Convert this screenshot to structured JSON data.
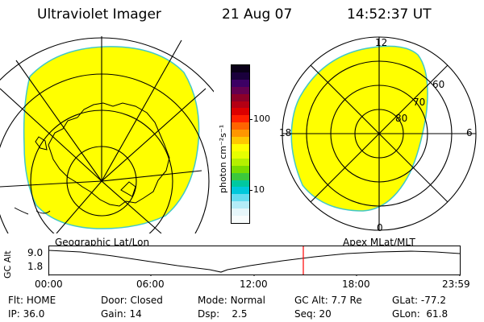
{
  "header": {
    "instrument": "Ultraviolet Imager",
    "date": "21 Aug 07",
    "time": "14:52:37 UT"
  },
  "colorbar": {
    "unit_label": "photon cm⁻²s⁻¹",
    "tick_labels": [
      "100",
      "10"
    ],
    "colors": [
      "#0a0018",
      "#1a003c",
      "#3c0064",
      "#640050",
      "#8c0028",
      "#b40014",
      "#dc0000",
      "#ff2000",
      "#ff6400",
      "#ff9600",
      "#ffc800",
      "#ffff00",
      "#e6ff00",
      "#b4f000",
      "#78dc00",
      "#3cc83c",
      "#00c8a0",
      "#00c8dc",
      "#64dcf0",
      "#b4ecf8",
      "#e6f6fa",
      "#f8fcfc"
    ]
  },
  "geo_map": {
    "label": "Geographic Lat/Lon",
    "fill_color": "#ffff00"
  },
  "polar_map": {
    "label": "Apex MLat/MLT",
    "mlt_labels": {
      "top": "12",
      "left": "18",
      "right": "6",
      "bottom": "0"
    },
    "lat_labels": [
      "60",
      "70",
      "80"
    ],
    "fill_color": "#ffff00"
  },
  "altitude_plot": {
    "axis_label": "GC Alt",
    "y_ticks": [
      "9.0",
      "1.8"
    ],
    "x_ticks": [
      "00:00",
      "06:00",
      "12:00",
      "18:00",
      "23:59"
    ],
    "current_time_color": "#ff0000"
  },
  "status": {
    "flt_label": "Flt:",
    "flt_value": "HOME",
    "ip_label": "IP:",
    "ip_value": "36.0",
    "door_label": "Door:",
    "door_value": "Closed",
    "gain_label": "Gain:",
    "gain_value": "14",
    "mode_label": "Mode:",
    "mode_value": "Normal",
    "dsp_label": "Dsp:",
    "dsp_value": "2.5",
    "gcalt_label": "GC Alt:",
    "gcalt_value": "7.7 Re",
    "seq_label": "Seq:",
    "seq_value": "20",
    "glat_label": "GLat:",
    "glat_value": "-77.2",
    "glon_label": "GLon:",
    "glon_value": "61.8"
  }
}
